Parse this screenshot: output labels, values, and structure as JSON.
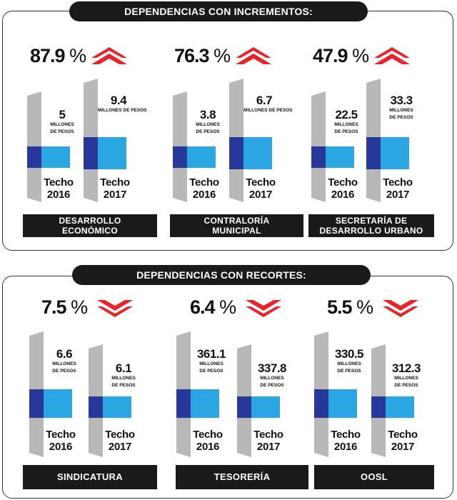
{
  "colors": {
    "gray": "#c4c4c4",
    "light_gray": "#d4d4d4",
    "dark_blue": "#27389a",
    "light_blue": "#2aa6e3",
    "up_red": "#e8232a",
    "down_red": "#e8232a",
    "label_bg": "#1a1a1a"
  },
  "sections": [
    {
      "title": "DEPENDENCIAS CON INCREMENTOS:",
      "trend": "up",
      "items": [
        {
          "pct": "87.9",
          "pct_sign": "%",
          "label_lines": [
            "DESARROLLO",
            "ECONÓMICO"
          ],
          "bars": [
            {
              "value": "5",
              "unit_lines": [
                "MILLONES",
                "DE PESOS"
              ],
              "year_lines": [
                "Techo",
                "2016"
              ]
            },
            {
              "value": "9.4",
              "unit_lines": [
                "MILLONES DE PESOS"
              ],
              "year_lines": [
                "Techo",
                "2017"
              ]
            }
          ]
        },
        {
          "pct": "76.3",
          "pct_sign": "%",
          "label_lines": [
            "CONTRALORÍA",
            "MUNICIPAL"
          ],
          "bars": [
            {
              "value": "3.8",
              "unit_lines": [
                "MILLONES",
                "DE PESOS"
              ],
              "year_lines": [
                "Techo",
                "2016"
              ]
            },
            {
              "value": "6.7",
              "unit_lines": [
                "MILLONES DE PESOS"
              ],
              "year_lines": [
                "Techo",
                "2017"
              ]
            }
          ]
        },
        {
          "pct": "47.9",
          "pct_sign": "%",
          "label_lines": [
            "SECRETARÍA DE",
            "DESARROLLO URBANO"
          ],
          "bars": [
            {
              "value": "22.5",
              "unit_lines": [
                "MILLONES",
                "DE PESOS"
              ],
              "year_lines": [
                "Techo",
                "2016"
              ]
            },
            {
              "value": "33.3",
              "unit_lines": [
                "MILLONES",
                "DE PESOS"
              ],
              "year_lines": [
                "Techo",
                "2017"
              ]
            }
          ]
        }
      ]
    },
    {
      "title": "DEPENDENCIAS CON RECORTES:",
      "trend": "down",
      "items": [
        {
          "pct": "7.5",
          "pct_sign": "%",
          "label_lines": [
            "SINDICATURA"
          ],
          "bars": [
            {
              "value": "6.6",
              "unit_lines": [
                "MILLONES",
                "DE PESOS"
              ],
              "year_lines": [
                "Techo",
                "2016"
              ]
            },
            {
              "value": "6.1",
              "unit_lines": [
                "MILLONES",
                "DE PESOS"
              ],
              "year_lines": [
                "Techo",
                "2017"
              ]
            }
          ]
        },
        {
          "pct": "6.4",
          "pct_sign": "%",
          "label_lines": [
            "TESORERÍA"
          ],
          "bars": [
            {
              "value": "361.1",
              "unit_lines": [
                "MILLONES",
                "DE PESOS"
              ],
              "year_lines": [
                "Techo",
                "2016"
              ]
            },
            {
              "value": "337.8",
              "unit_lines": [
                "MILLONES",
                "DE PESOS"
              ],
              "year_lines": [
                "Techo",
                "2017"
              ]
            }
          ]
        },
        {
          "pct": "5.5",
          "pct_sign": "%",
          "label_lines": [
            "OOSL"
          ],
          "bars": [
            {
              "value": "330.5",
              "unit_lines": [
                "MILLONES",
                "DE PESOS"
              ],
              "year_lines": [
                "Techo",
                "2016"
              ]
            },
            {
              "value": "312.3",
              "unit_lines": [
                "MILLONES",
                "DE PESOS"
              ],
              "year_lines": [
                "Techo",
                "2017"
              ]
            }
          ]
        }
      ]
    }
  ],
  "chart_data": [
    {
      "type": "bar",
      "title": "DEPENDENCIAS CON INCREMENTOS:",
      "categories": [
        "Techo 2016",
        "Techo 2017"
      ],
      "series": [
        {
          "name": "DESARROLLO ECONÓMICO",
          "values": [
            5,
            9.4
          ],
          "change_pct": 87.9
        },
        {
          "name": "CONTRALORÍA MUNICIPAL",
          "values": [
            3.8,
            6.7
          ],
          "change_pct": 76.3
        },
        {
          "name": "SECRETARÍA DE DESARROLLO URBANO",
          "values": [
            22.5,
            33.3
          ],
          "change_pct": 47.9
        }
      ],
      "ylabel": "MILLONES DE PESOS"
    },
    {
      "type": "bar",
      "title": "DEPENDENCIAS CON RECORTES:",
      "categories": [
        "Techo 2016",
        "Techo 2017"
      ],
      "series": [
        {
          "name": "SINDICATURA",
          "values": [
            6.6,
            6.1
          ],
          "change_pct": 7.5
        },
        {
          "name": "TESORERÍA",
          "values": [
            361.1,
            337.8
          ],
          "change_pct": 6.4
        },
        {
          "name": "OOSL",
          "values": [
            330.5,
            312.3
          ],
          "change_pct": 5.5
        }
      ],
      "ylabel": "MILLONES DE PESOS"
    }
  ]
}
